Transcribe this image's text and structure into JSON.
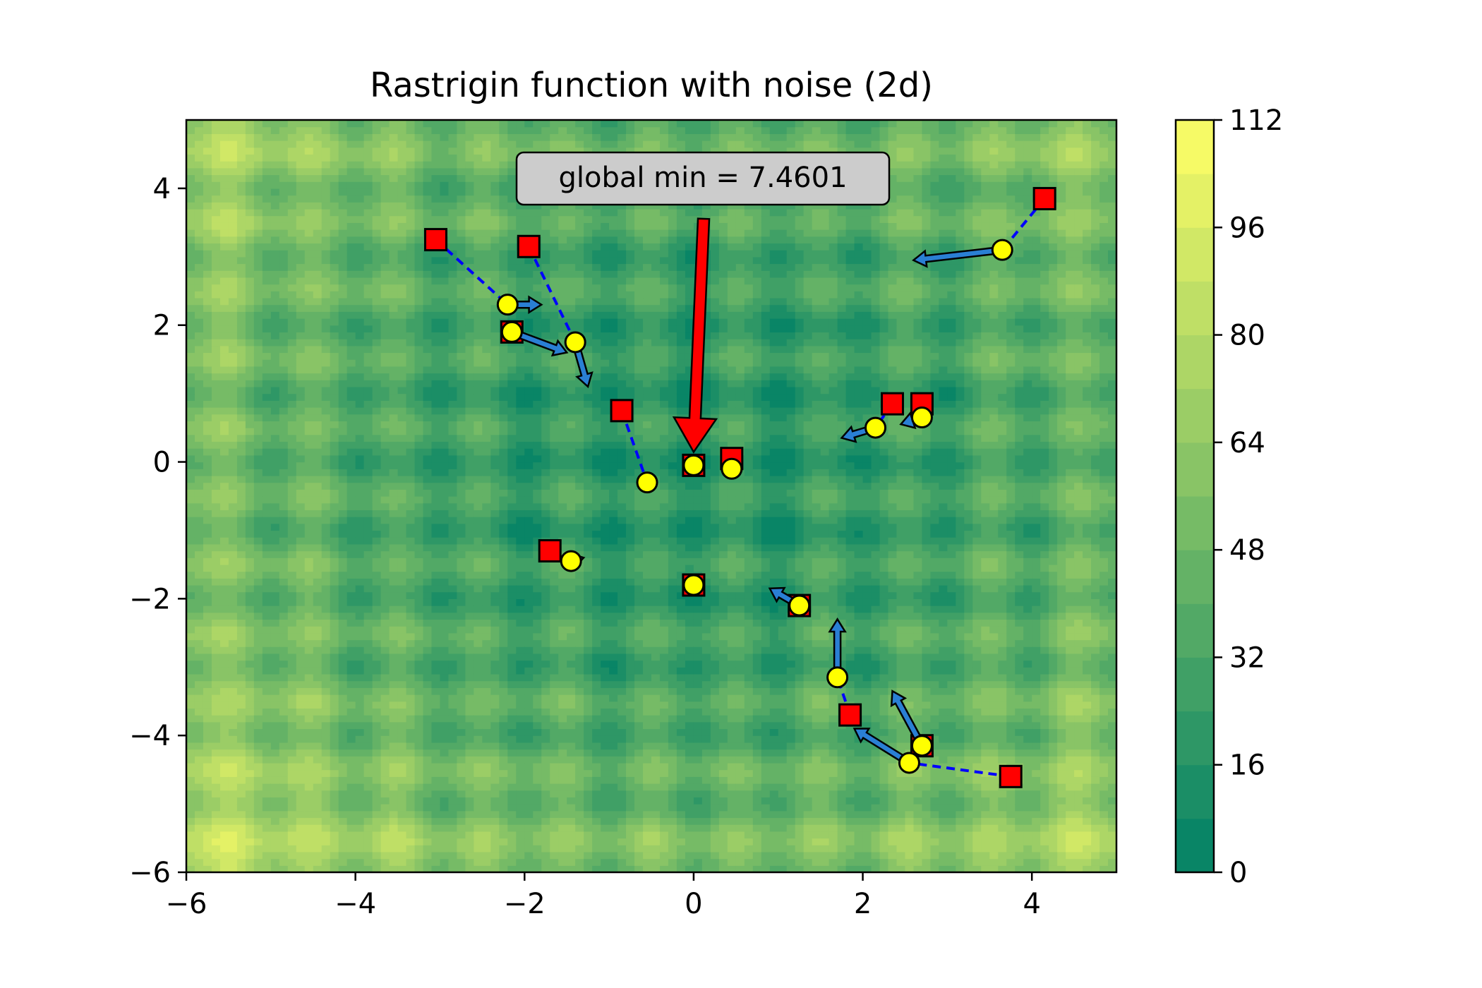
{
  "chart_data": {
    "type": "contour",
    "title": "Rastrigin function with noise (2d)",
    "xlabel": "",
    "ylabel": "",
    "xlim": [
      -6,
      5
    ],
    "ylim": [
      -6,
      5
    ],
    "xticks": [
      -6,
      -4,
      -2,
      0,
      2,
      4
    ],
    "yticks": [
      -6,
      -4,
      -2,
      0,
      2,
      4
    ],
    "xtick_labels": [
      "−6",
      "−4",
      "−2",
      "0",
      "2",
      "4"
    ],
    "ytick_labels": [
      "−6",
      "−4",
      "−2",
      "0",
      "2",
      "4"
    ],
    "colorbar": {
      "min": 0,
      "max": 112,
      "ticks": [
        0,
        16,
        32,
        48,
        64,
        80,
        96,
        112
      ],
      "tick_labels": [
        "0",
        "16",
        "32",
        "48",
        "64",
        "80",
        "96",
        "112"
      ],
      "colors": [
        "#008066",
        "#ffff66"
      ]
    },
    "annotation": {
      "text": "global min = 7.4601",
      "point": [
        0,
        0
      ],
      "arrow_color": "#ff0000"
    },
    "trajectories": [
      {
        "start": [
          -3.05,
          3.25
        ],
        "end": [
          -2.2,
          2.3
        ],
        "arrow_to": [
          -1.8,
          2.3
        ]
      },
      {
        "start": [
          -1.95,
          3.15
        ],
        "end": [
          -1.4,
          1.75
        ],
        "arrow_to": [
          -1.25,
          1.1
        ]
      },
      {
        "start": [
          -2.15,
          1.9
        ],
        "end": [
          -2.15,
          1.9
        ],
        "arrow_to": [
          -1.5,
          1.6
        ]
      },
      {
        "start": [
          -0.85,
          0.75
        ],
        "end": [
          -0.55,
          -0.3
        ],
        "arrow_to": [
          -0.45,
          -0.35
        ]
      },
      {
        "start": [
          -1.7,
          -1.3
        ],
        "end": [
          -1.45,
          -1.45
        ],
        "arrow_to": [
          -1.3,
          -1.4
        ]
      },
      {
        "start": [
          0,
          -0.05
        ],
        "end": [
          0,
          -0.05
        ],
        "arrow_to": null
      },
      {
        "start": [
          0.45,
          0.05
        ],
        "end": [
          0.45,
          -0.1
        ],
        "arrow_to": null
      },
      {
        "start": [
          0,
          -1.8
        ],
        "end": [
          0,
          -1.8
        ],
        "arrow_to": null
      },
      {
        "start": [
          1.25,
          -2.1
        ],
        "end": [
          1.25,
          -2.1
        ],
        "arrow_to": [
          0.9,
          -1.85
        ]
      },
      {
        "start": [
          1.85,
          -3.7
        ],
        "end": [
          1.7,
          -3.15
        ],
        "arrow_to": [
          1.7,
          -2.3
        ]
      },
      {
        "start": [
          2.7,
          -4.15
        ],
        "end": [
          2.7,
          -4.15
        ],
        "arrow_to": [
          2.35,
          -3.35
        ]
      },
      {
        "start": [
          3.75,
          -4.6
        ],
        "end": [
          2.55,
          -4.4
        ],
        "arrow_to": [
          1.9,
          -3.9
        ]
      },
      {
        "start": [
          2.35,
          0.85
        ],
        "end": [
          2.15,
          0.5
        ],
        "arrow_to": [
          1.75,
          0.35
        ]
      },
      {
        "start": [
          2.7,
          0.85
        ],
        "end": [
          2.7,
          0.65
        ],
        "arrow_to": [
          2.45,
          0.55
        ]
      },
      {
        "start": [
          4.15,
          3.85
        ],
        "end": [
          3.65,
          3.1
        ],
        "arrow_to": [
          2.6,
          2.95
        ]
      }
    ],
    "marker_legend": {
      "start_marker": "red-square",
      "end_marker": "yellow-circle",
      "path_style": "blue-dashed",
      "arrow_color": "#2a7fd4"
    },
    "grid": false,
    "colormap": "summer"
  }
}
